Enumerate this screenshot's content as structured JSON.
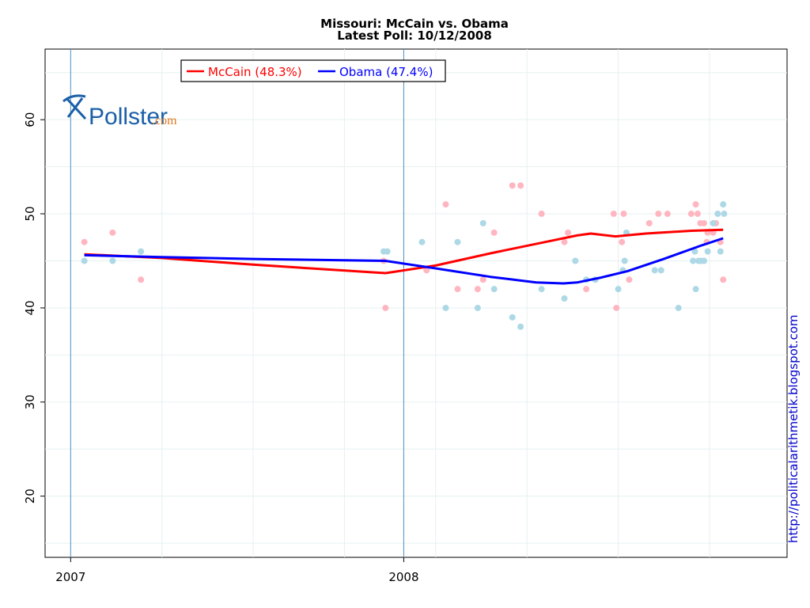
{
  "chart_data": {
    "type": "scatter",
    "title": "Missouri: McCain vs. Obama",
    "subtitle": "Latest Poll: 10/12/2008",
    "xlabel": "",
    "ylabel": "",
    "x_ticks": [
      "2007",
      "2008"
    ],
    "y_ticks": [
      20,
      30,
      40,
      50,
      60
    ],
    "xlim_days_from_2007_01_01": [
      -28,
      785
    ],
    "ylim": [
      13.5,
      67.5
    ],
    "grid": true,
    "legend_placement": "top-left",
    "legend": [
      {
        "label": "McCain (48.3%)",
        "color": "#ff0000"
      },
      {
        "label": "Obama (47.4%)",
        "color": "#0000ff"
      }
    ],
    "x_unit": "days since 2007-01-01",
    "series": [
      {
        "name": "McCain",
        "trend_color": "#ff0000",
        "point_color": "#ffb6c1",
        "points": [
          [
            15,
            47
          ],
          [
            46,
            48
          ],
          [
            77,
            43
          ],
          [
            345,
            40
          ],
          [
            343,
            45
          ],
          [
            390,
            44
          ],
          [
            411,
            51
          ],
          [
            424,
            42
          ],
          [
            446,
            42
          ],
          [
            452,
            43
          ],
          [
            464,
            48
          ],
          [
            484,
            53
          ],
          [
            493,
            53
          ],
          [
            516,
            50
          ],
          [
            541,
            47
          ],
          [
            545,
            48
          ],
          [
            565,
            42
          ],
          [
            595,
            50
          ],
          [
            598,
            40
          ],
          [
            604,
            47
          ],
          [
            606,
            50
          ],
          [
            612,
            43
          ],
          [
            634,
            49
          ],
          [
            644,
            50
          ],
          [
            654,
            50
          ],
          [
            680,
            50
          ],
          [
            685,
            51
          ],
          [
            687,
            50
          ],
          [
            690,
            49
          ],
          [
            694,
            49
          ],
          [
            697,
            47
          ],
          [
            698,
            48
          ],
          [
            704,
            48
          ],
          [
            707,
            49
          ],
          [
            712,
            47
          ],
          [
            715,
            43
          ]
        ],
        "trend": [
          [
            15,
            45.7
          ],
          [
            100,
            45.3
          ],
          [
            200,
            44.6
          ],
          [
            345,
            43.7
          ],
          [
            400,
            44.5
          ],
          [
            460,
            45.8
          ],
          [
            520,
            47.0
          ],
          [
            555,
            47.7
          ],
          [
            570,
            47.9
          ],
          [
            597,
            47.6
          ],
          [
            630,
            47.9
          ],
          [
            680,
            48.2
          ],
          [
            715,
            48.3
          ]
        ]
      },
      {
        "name": "Obama",
        "trend_color": "#0000ff",
        "point_color": "#add8e6",
        "points": [
          [
            15,
            45
          ],
          [
            46,
            45
          ],
          [
            77,
            46
          ],
          [
            343,
            46
          ],
          [
            347,
            46
          ],
          [
            385,
            47
          ],
          [
            411,
            40
          ],
          [
            424,
            47
          ],
          [
            446,
            40
          ],
          [
            452,
            49
          ],
          [
            464,
            42
          ],
          [
            484,
            39
          ],
          [
            493,
            38
          ],
          [
            516,
            42
          ],
          [
            541,
            41
          ],
          [
            553,
            45
          ],
          [
            565,
            43
          ],
          [
            575,
            43
          ],
          [
            600,
            42
          ],
          [
            605,
            44
          ],
          [
            607,
            45
          ],
          [
            609,
            48
          ],
          [
            640,
            44
          ],
          [
            647,
            44
          ],
          [
            666,
            40
          ],
          [
            682,
            45
          ],
          [
            684,
            46
          ],
          [
            685,
            42
          ],
          [
            688,
            45
          ],
          [
            691,
            45
          ],
          [
            694,
            45
          ],
          [
            698,
            46
          ],
          [
            704,
            49
          ],
          [
            709,
            50
          ],
          [
            712,
            46
          ],
          [
            715,
            51
          ],
          [
            716,
            50
          ]
        ],
        "trend": [
          [
            15,
            45.6
          ],
          [
            100,
            45.4
          ],
          [
            200,
            45.2
          ],
          [
            345,
            45.0
          ],
          [
            400,
            44.2
          ],
          [
            460,
            43.3
          ],
          [
            510,
            42.7
          ],
          [
            540,
            42.6
          ],
          [
            555,
            42.7
          ],
          [
            580,
            43.2
          ],
          [
            610,
            43.9
          ],
          [
            650,
            45.2
          ],
          [
            690,
            46.6
          ],
          [
            715,
            47.4
          ]
        ]
      }
    ],
    "watermark_logo": "Pollster.com",
    "side_credit": "http://politicalarithmetik.blogspot.com"
  }
}
